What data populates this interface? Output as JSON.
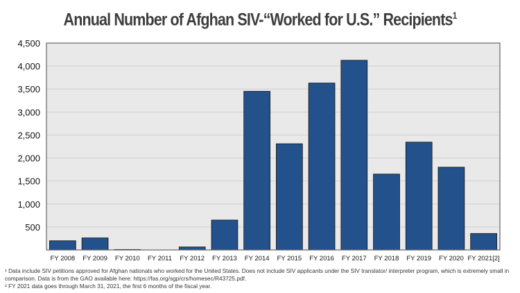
{
  "chart_data": {
    "type": "bar",
    "title": "Annual Number of Afghan SIV-“Worked for U.S.” Recipients",
    "title_superscript": "1",
    "categories": [
      "FY 2008",
      "FY 2009",
      "FY 2010",
      "FY 2011",
      "FY 2012",
      "FY 2013",
      "FY 2014",
      "FY 2015",
      "FY 2016",
      "FY 2017",
      "FY 2018",
      "FY 2019",
      "FY 2020",
      "FY 2021[2]"
    ],
    "values": [
      200,
      262,
      10,
      0,
      65,
      650,
      3450,
      2310,
      3630,
      4125,
      1650,
      2345,
      1800,
      358
    ],
    "ylim": [
      0,
      4500
    ],
    "yticks": [
      500,
      1000,
      1500,
      2000,
      2500,
      3000,
      3500,
      4000,
      4500
    ],
    "ytick_labels": [
      "500",
      "1,000",
      "1,500",
      "2,000",
      "2,500",
      "3,000",
      "3,500",
      "4,000",
      "4,500"
    ],
    "xlabel": "",
    "ylabel": "",
    "grid": true,
    "bar_color": "#22518c",
    "plot_background": "#e9e9e9"
  },
  "footnotes": [
    "¹ Data include SIV petitions approved for Afghan nationals who worked for the United States. Does not include SIV applicants under the SIV translator/ interpreter program, which is extremely small in comparison. Data is from the GAO available here: https://fas.org/sgp/crs/homesec/R43725.pdf.",
    "² FY 2021 data goes through March 31, 2021, the first 6 months of the fiscal year."
  ]
}
